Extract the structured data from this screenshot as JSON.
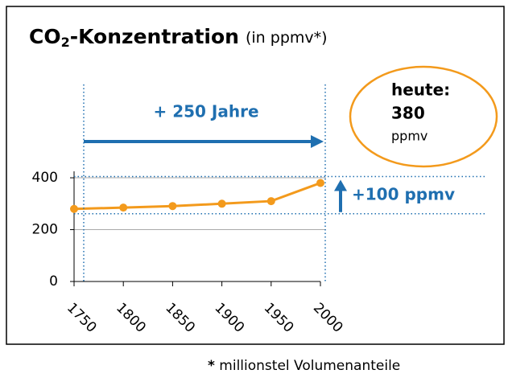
{
  "chart_data": {
    "type": "line",
    "title": {
      "main": "CO",
      "subscript": "2",
      "rest": "-Konzentration",
      "unit": "(in ppmv*)"
    },
    "x": [
      1750,
      1800,
      1850,
      1900,
      1950,
      2000
    ],
    "series": [
      {
        "name": "CO2",
        "color": "#f39a1c",
        "values": [
          280,
          285,
          291,
          300,
          310,
          380
        ]
      }
    ],
    "xlim": [
      1750,
      2000
    ],
    "xticks": [
      1750,
      1800,
      1850,
      1900,
      1950,
      2000
    ],
    "ylim": [
      0,
      425
    ],
    "yticks": [
      0,
      200,
      400
    ],
    "grid": true,
    "annotations": {
      "span": "+ 250 Jahre",
      "today_label": "heute:",
      "today_value": "380",
      "today_unit": "ppmv",
      "increase": "+100 ppmv"
    },
    "footnote": {
      "star": "*",
      "text": "millionstel Volumenanteile"
    }
  }
}
